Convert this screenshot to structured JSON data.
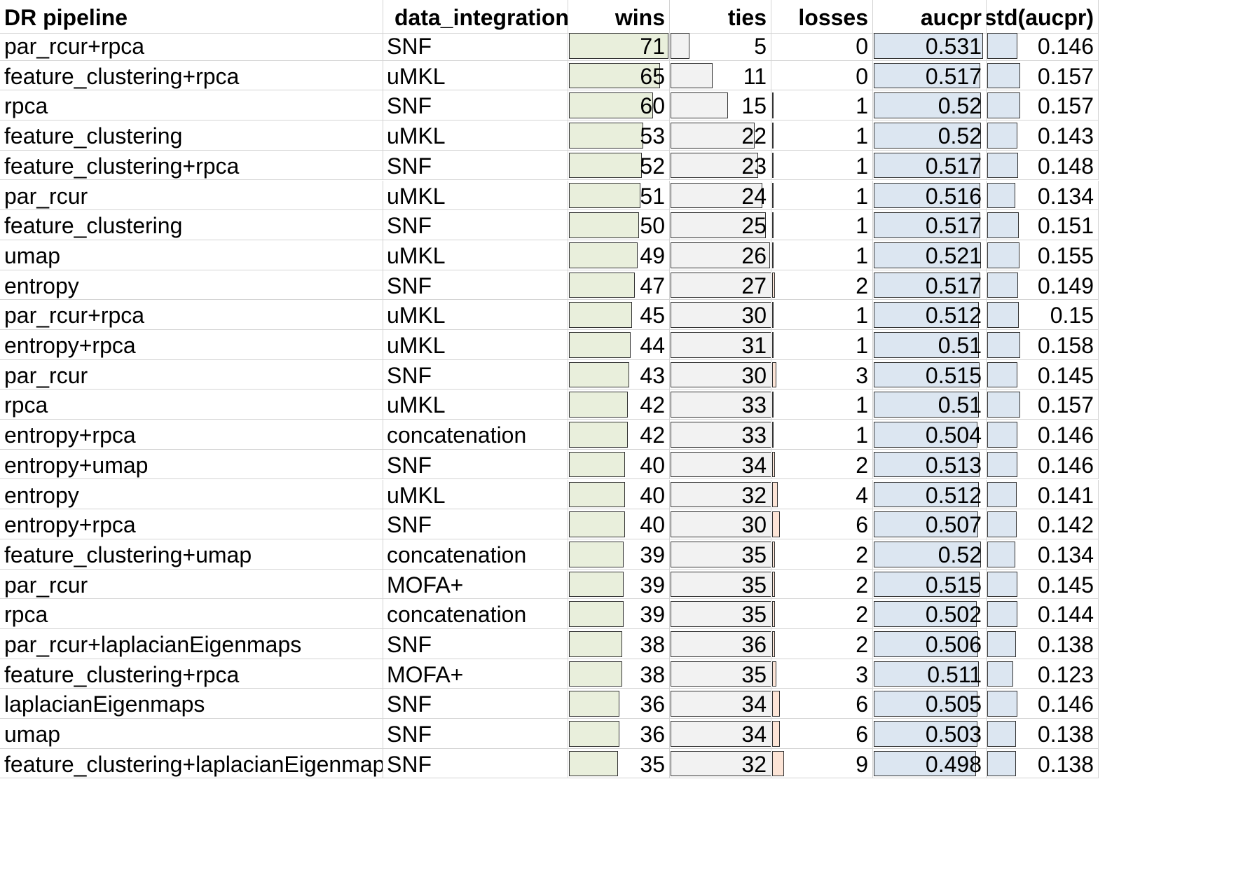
{
  "sheet": {
    "columns": [
      "DR pipeline",
      "data_integration",
      "wins",
      "ties",
      "losses",
      "aucpr",
      "std(aucpr)"
    ],
    "bar_colors": {
      "wins": "#e9efdc",
      "ties": "#f2f2f2",
      "losses": "#fce4d6",
      "aucpr": "#dce6f1",
      "std": "#dce6f1"
    },
    "rows": [
      {
        "pipeline": "par_rcur+rpca",
        "integration": "SNF",
        "wins": "71",
        "ties": "5",
        "losses": "0",
        "aucpr": "0.531",
        "std": "0.146"
      },
      {
        "pipeline": "feature_clustering+rpca",
        "integration": "uMKL",
        "wins": "65",
        "ties": "11",
        "losses": "0",
        "aucpr": "0.517",
        "std": "0.157"
      },
      {
        "pipeline": "rpca",
        "integration": "SNF",
        "wins": "60",
        "ties": "15",
        "losses": "1",
        "aucpr": "0.52",
        "std": "0.157"
      },
      {
        "pipeline": "feature_clustering",
        "integration": "uMKL",
        "wins": "53",
        "ties": "22",
        "losses": "1",
        "aucpr": "0.52",
        "std": "0.143"
      },
      {
        "pipeline": "feature_clustering+rpca",
        "integration": "SNF",
        "wins": "52",
        "ties": "23",
        "losses": "1",
        "aucpr": "0.517",
        "std": "0.148"
      },
      {
        "pipeline": "par_rcur",
        "integration": "uMKL",
        "wins": "51",
        "ties": "24",
        "losses": "1",
        "aucpr": "0.516",
        "std": "0.134"
      },
      {
        "pipeline": "feature_clustering",
        "integration": "SNF",
        "wins": "50",
        "ties": "25",
        "losses": "1",
        "aucpr": "0.517",
        "std": "0.151"
      },
      {
        "pipeline": "umap",
        "integration": "uMKL",
        "wins": "49",
        "ties": "26",
        "losses": "1",
        "aucpr": "0.521",
        "std": "0.155"
      },
      {
        "pipeline": "entropy",
        "integration": "SNF",
        "wins": "47",
        "ties": "27",
        "losses": "2",
        "aucpr": "0.517",
        "std": "0.149"
      },
      {
        "pipeline": "par_rcur+rpca",
        "integration": "uMKL",
        "wins": "45",
        "ties": "30",
        "losses": "1",
        "aucpr": "0.512",
        "std": "0.15"
      },
      {
        "pipeline": "entropy+rpca",
        "integration": "uMKL",
        "wins": "44",
        "ties": "31",
        "losses": "1",
        "aucpr": "0.51",
        "std": "0.158"
      },
      {
        "pipeline": "par_rcur",
        "integration": "SNF",
        "wins": "43",
        "ties": "30",
        "losses": "3",
        "aucpr": "0.515",
        "std": "0.145"
      },
      {
        "pipeline": "rpca",
        "integration": "uMKL",
        "wins": "42",
        "ties": "33",
        "losses": "1",
        "aucpr": "0.51",
        "std": "0.157"
      },
      {
        "pipeline": "entropy+rpca",
        "integration": "concatenation",
        "wins": "42",
        "ties": "33",
        "losses": "1",
        "aucpr": "0.504",
        "std": "0.146"
      },
      {
        "pipeline": "entropy+umap",
        "integration": "SNF",
        "wins": "40",
        "ties": "34",
        "losses": "2",
        "aucpr": "0.513",
        "std": "0.146"
      },
      {
        "pipeline": "entropy",
        "integration": "uMKL",
        "wins": "40",
        "ties": "32",
        "losses": "4",
        "aucpr": "0.512",
        "std": "0.141"
      },
      {
        "pipeline": "entropy+rpca",
        "integration": "SNF",
        "wins": "40",
        "ties": "30",
        "losses": "6",
        "aucpr": "0.507",
        "std": "0.142"
      },
      {
        "pipeline": "feature_clustering+umap",
        "integration": "concatenation",
        "wins": "39",
        "ties": "35",
        "losses": "2",
        "aucpr": "0.52",
        "std": "0.134"
      },
      {
        "pipeline": "par_rcur",
        "integration": "MOFA+",
        "wins": "39",
        "ties": "35",
        "losses": "2",
        "aucpr": "0.515",
        "std": "0.145"
      },
      {
        "pipeline": "rpca",
        "integration": "concatenation",
        "wins": "39",
        "ties": "35",
        "losses": "2",
        "aucpr": "0.502",
        "std": "0.144"
      },
      {
        "pipeline": "par_rcur+laplacianEigenmaps",
        "integration": "SNF",
        "wins": "38",
        "ties": "36",
        "losses": "2",
        "aucpr": "0.506",
        "std": "0.138"
      },
      {
        "pipeline": "feature_clustering+rpca",
        "integration": "MOFA+",
        "wins": "38",
        "ties": "35",
        "losses": "3",
        "aucpr": "0.511",
        "std": "0.123"
      },
      {
        "pipeline": "laplacianEigenmaps",
        "integration": "SNF",
        "wins": "36",
        "ties": "34",
        "losses": "6",
        "aucpr": "0.505",
        "std": "0.146"
      },
      {
        "pipeline": "umap",
        "integration": "SNF",
        "wins": "36",
        "ties": "34",
        "losses": "6",
        "aucpr": "0.503",
        "std": "0.138"
      },
      {
        "pipeline": "feature_clustering+laplacianEigenmaps",
        "integration": "SNF",
        "wins": "35",
        "ties": "32",
        "losses": "9",
        "aucpr": "0.498",
        "std": "0.138"
      }
    ]
  }
}
